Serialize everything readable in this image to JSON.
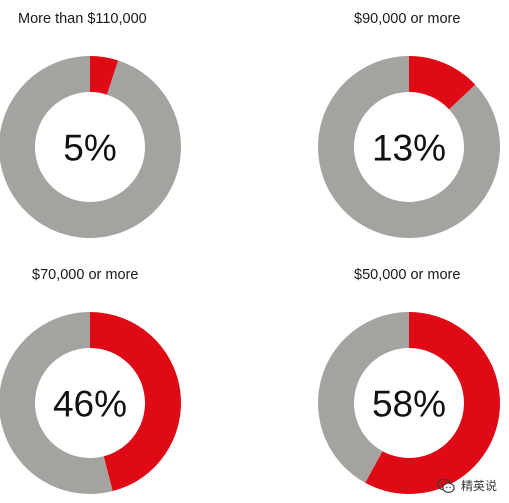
{
  "colors": {
    "highlight": "#de0a16",
    "remainder": "#a5a39f",
    "hole": "#ffffff"
  },
  "chart_data": [
    {
      "type": "pie",
      "title": "More than $110,000",
      "center_label": "5%",
      "values": [
        5,
        95
      ]
    },
    {
      "type": "pie",
      "title": "$90,000 or more",
      "center_label": "13%",
      "values": [
        13,
        87
      ]
    },
    {
      "type": "pie",
      "title": "$70,000 or more",
      "center_label": "46%",
      "values": [
        46,
        54
      ]
    },
    {
      "type": "pie",
      "title": "$50,000 or more",
      "center_label": "58%",
      "values": [
        58,
        42
      ]
    }
  ],
  "watermark": {
    "text": "精英说",
    "icon": "wechat-logo-icon"
  }
}
